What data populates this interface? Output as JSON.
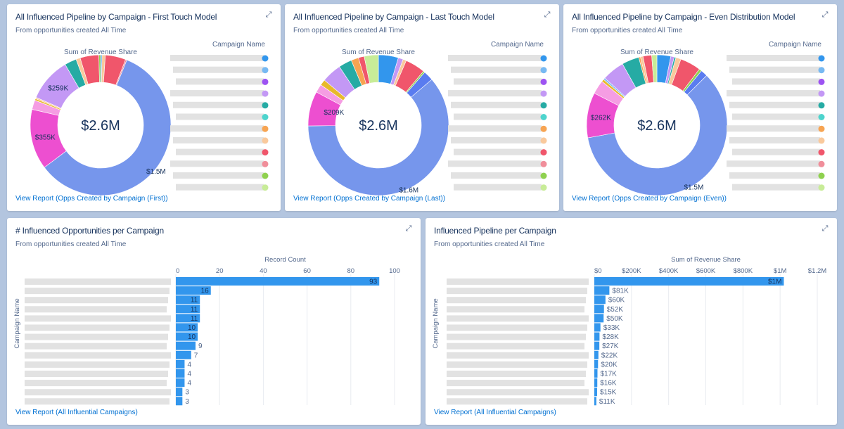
{
  "cards": [
    {
      "title": "All Influenced Pipeline by Campaign - First Touch Model",
      "subtitle": "From opportunities created All Time",
      "link": "View Report (Opps Created by Campaign (First))"
    },
    {
      "title": "All Influenced Pipeline by Campaign - Last Touch Model",
      "subtitle": "From opportunities created All Time",
      "link": "View Report (Opps Created by Campaign (Last))"
    },
    {
      "title": "All Influenced Pipeline by Campaign - Even Distribution Model",
      "subtitle": "From opportunities created All Time",
      "link": "View Report (Opps Created by Campaign (Even))"
    },
    {
      "title": "# Influenced Opportunities per Campaign",
      "subtitle": "From opportunities created All Time",
      "link": "View Report (All Influential Campaigns)"
    },
    {
      "title": "Influenced Pipeline per Campaign",
      "subtitle": "From opportunities created All Time",
      "link": "View Report (All Influential Campaigns)"
    }
  ],
  "expand_icon": "expand-arrows-icon",
  "legend_colors": [
    "#3296ed",
    "#77b9f2",
    "#9d53f2",
    "#c398f5",
    "#26aba4",
    "#4ed4cd",
    "#f7a452",
    "#f9c99c",
    "#f0566b",
    "#f08e9a",
    "#8fd14f",
    "#c8ec98"
  ],
  "chart_data": [
    {
      "type": "pie",
      "title": "Sum of Revenue Share",
      "legend_title": "Campaign Name",
      "legend": "right",
      "center_label": "$2.6M",
      "unit": "$K",
      "slices": [
        {
          "v": 8,
          "c": "#3296ed"
        },
        {
          "v": 20,
          "c": "#f9c99c"
        },
        {
          "v": 120,
          "c": "#f0566b"
        },
        {
          "v": 8,
          "c": "#f08e9a"
        },
        {
          "v": 1500,
          "c": "#7696ec",
          "label": "$1.5M"
        },
        {
          "v": 355,
          "c": "#ed4fd0",
          "label": "$355K"
        },
        {
          "v": 55,
          "c": "#f59de3"
        },
        {
          "v": 10,
          "c": "#e8b92a"
        },
        {
          "v": 8,
          "c": "#f9c99c"
        },
        {
          "v": 259,
          "c": "#c398f5",
          "label": "$259K"
        },
        {
          "v": 70,
          "c": "#26aba4"
        },
        {
          "v": 25,
          "c": "#f9c99c"
        },
        {
          "v": 110,
          "c": "#f0566b"
        },
        {
          "v": 10,
          "c": "#8fd14f"
        }
      ]
    },
    {
      "type": "pie",
      "title": "Sum of Revenue Share",
      "legend_title": "Campaign Name",
      "legend": "right",
      "center_label": "$2.6M",
      "unit": "$K",
      "slices": [
        {
          "v": 120,
          "c": "#3296ed"
        },
        {
          "v": 30,
          "c": "#c398f5"
        },
        {
          "v": 20,
          "c": "#f9c99c"
        },
        {
          "v": 120,
          "c": "#f0566b"
        },
        {
          "v": 10,
          "c": "#8fd14f"
        },
        {
          "v": 60,
          "c": "#5a7cf0"
        },
        {
          "v": 1600,
          "c": "#7696ec",
          "label": "$1.6M"
        },
        {
          "v": 209,
          "c": "#ed4fd0",
          "label": "$209K"
        },
        {
          "v": 50,
          "c": "#f59de3"
        },
        {
          "v": 35,
          "c": "#e8b92a"
        },
        {
          "v": 120,
          "c": "#c398f5"
        },
        {
          "v": 80,
          "c": "#26aba4"
        },
        {
          "v": 45,
          "c": "#f7a452"
        },
        {
          "v": 35,
          "c": "#f0566b"
        },
        {
          "v": 85,
          "c": "#c8ec98"
        }
      ]
    },
    {
      "type": "pie",
      "title": "Sum of Revenue Share",
      "legend_title": "Campaign Name",
      "legend": "right",
      "center_label": "$2.6M",
      "unit": "$K",
      "slices": [
        {
          "v": 80,
          "c": "#3296ed"
        },
        {
          "v": 20,
          "c": "#c398f5"
        },
        {
          "v": 10,
          "c": "#26aba4"
        },
        {
          "v": 30,
          "c": "#f9c99c"
        },
        {
          "v": 120,
          "c": "#f0566b"
        },
        {
          "v": 15,
          "c": "#8fd14f"
        },
        {
          "v": 40,
          "c": "#5a7cf0"
        },
        {
          "v": 1500,
          "c": "#7696ec",
          "label": "$1.5M"
        },
        {
          "v": 262,
          "c": "#ed4fd0",
          "label": "$262K"
        },
        {
          "v": 80,
          "c": "#f59de3"
        },
        {
          "v": 15,
          "c": "#e8b92a"
        },
        {
          "v": 10,
          "c": "#77b9f2"
        },
        {
          "v": 130,
          "c": "#c398f5"
        },
        {
          "v": 100,
          "c": "#26aba4"
        },
        {
          "v": 10,
          "c": "#f7a452"
        },
        {
          "v": 15,
          "c": "#f9c99c"
        },
        {
          "v": 50,
          "c": "#f0566b"
        },
        {
          "v": 30,
          "c": "#c8ec98"
        }
      ]
    },
    {
      "type": "bar",
      "orientation": "horizontal",
      "xlabel": "Record Count",
      "ylabel": "Campaign Name",
      "xlim": [
        0,
        100
      ],
      "ticks": [
        "0",
        "20",
        "40",
        "60",
        "80",
        "100"
      ],
      "tick_values": [
        0,
        20,
        40,
        60,
        80,
        100
      ],
      "grid": true,
      "color": "#3296ed",
      "values": [
        93,
        16,
        11,
        11,
        11,
        10,
        10,
        9,
        7,
        4,
        4,
        4,
        3,
        3
      ],
      "labels": [
        "93",
        "16",
        "11",
        "11",
        "11",
        "10",
        "10",
        "9",
        "7",
        "4",
        "4",
        "4",
        "3",
        "3"
      ]
    },
    {
      "type": "bar",
      "orientation": "horizontal",
      "xlabel": "Sum of Revenue Share",
      "ylabel": "Campaign Name",
      "xlim": [
        0,
        1200000
      ],
      "ticks": [
        "$0",
        "$200K",
        "$400K",
        "$600K",
        "$800K",
        "$1M",
        "$1.2M"
      ],
      "tick_values": [
        0,
        200000,
        400000,
        600000,
        800000,
        1000000,
        1200000
      ],
      "grid": true,
      "color": "#3296ed",
      "values": [
        1020000,
        81000,
        60000,
        52000,
        50000,
        33000,
        28000,
        27000,
        22000,
        20000,
        17000,
        16000,
        15000,
        11000
      ],
      "labels": [
        "$1M",
        "$81K",
        "$60K",
        "$52K",
        "$50K",
        "$33K",
        "$28K",
        "$27K",
        "$22K",
        "$20K",
        "$17K",
        "$16K",
        "$15K",
        "$11K"
      ]
    }
  ]
}
